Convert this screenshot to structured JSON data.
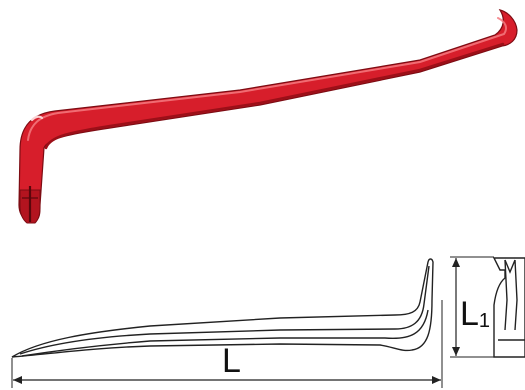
{
  "diagram": {
    "labels": {
      "length": "L",
      "height_letter": "L",
      "height_subscript": "1"
    },
    "colors": {
      "bar_red": "#d71e2b",
      "bar_dark": "#9c0f18",
      "bar_highlight": "#f47a80",
      "line": "#222222",
      "background": "#ffffff"
    }
  }
}
